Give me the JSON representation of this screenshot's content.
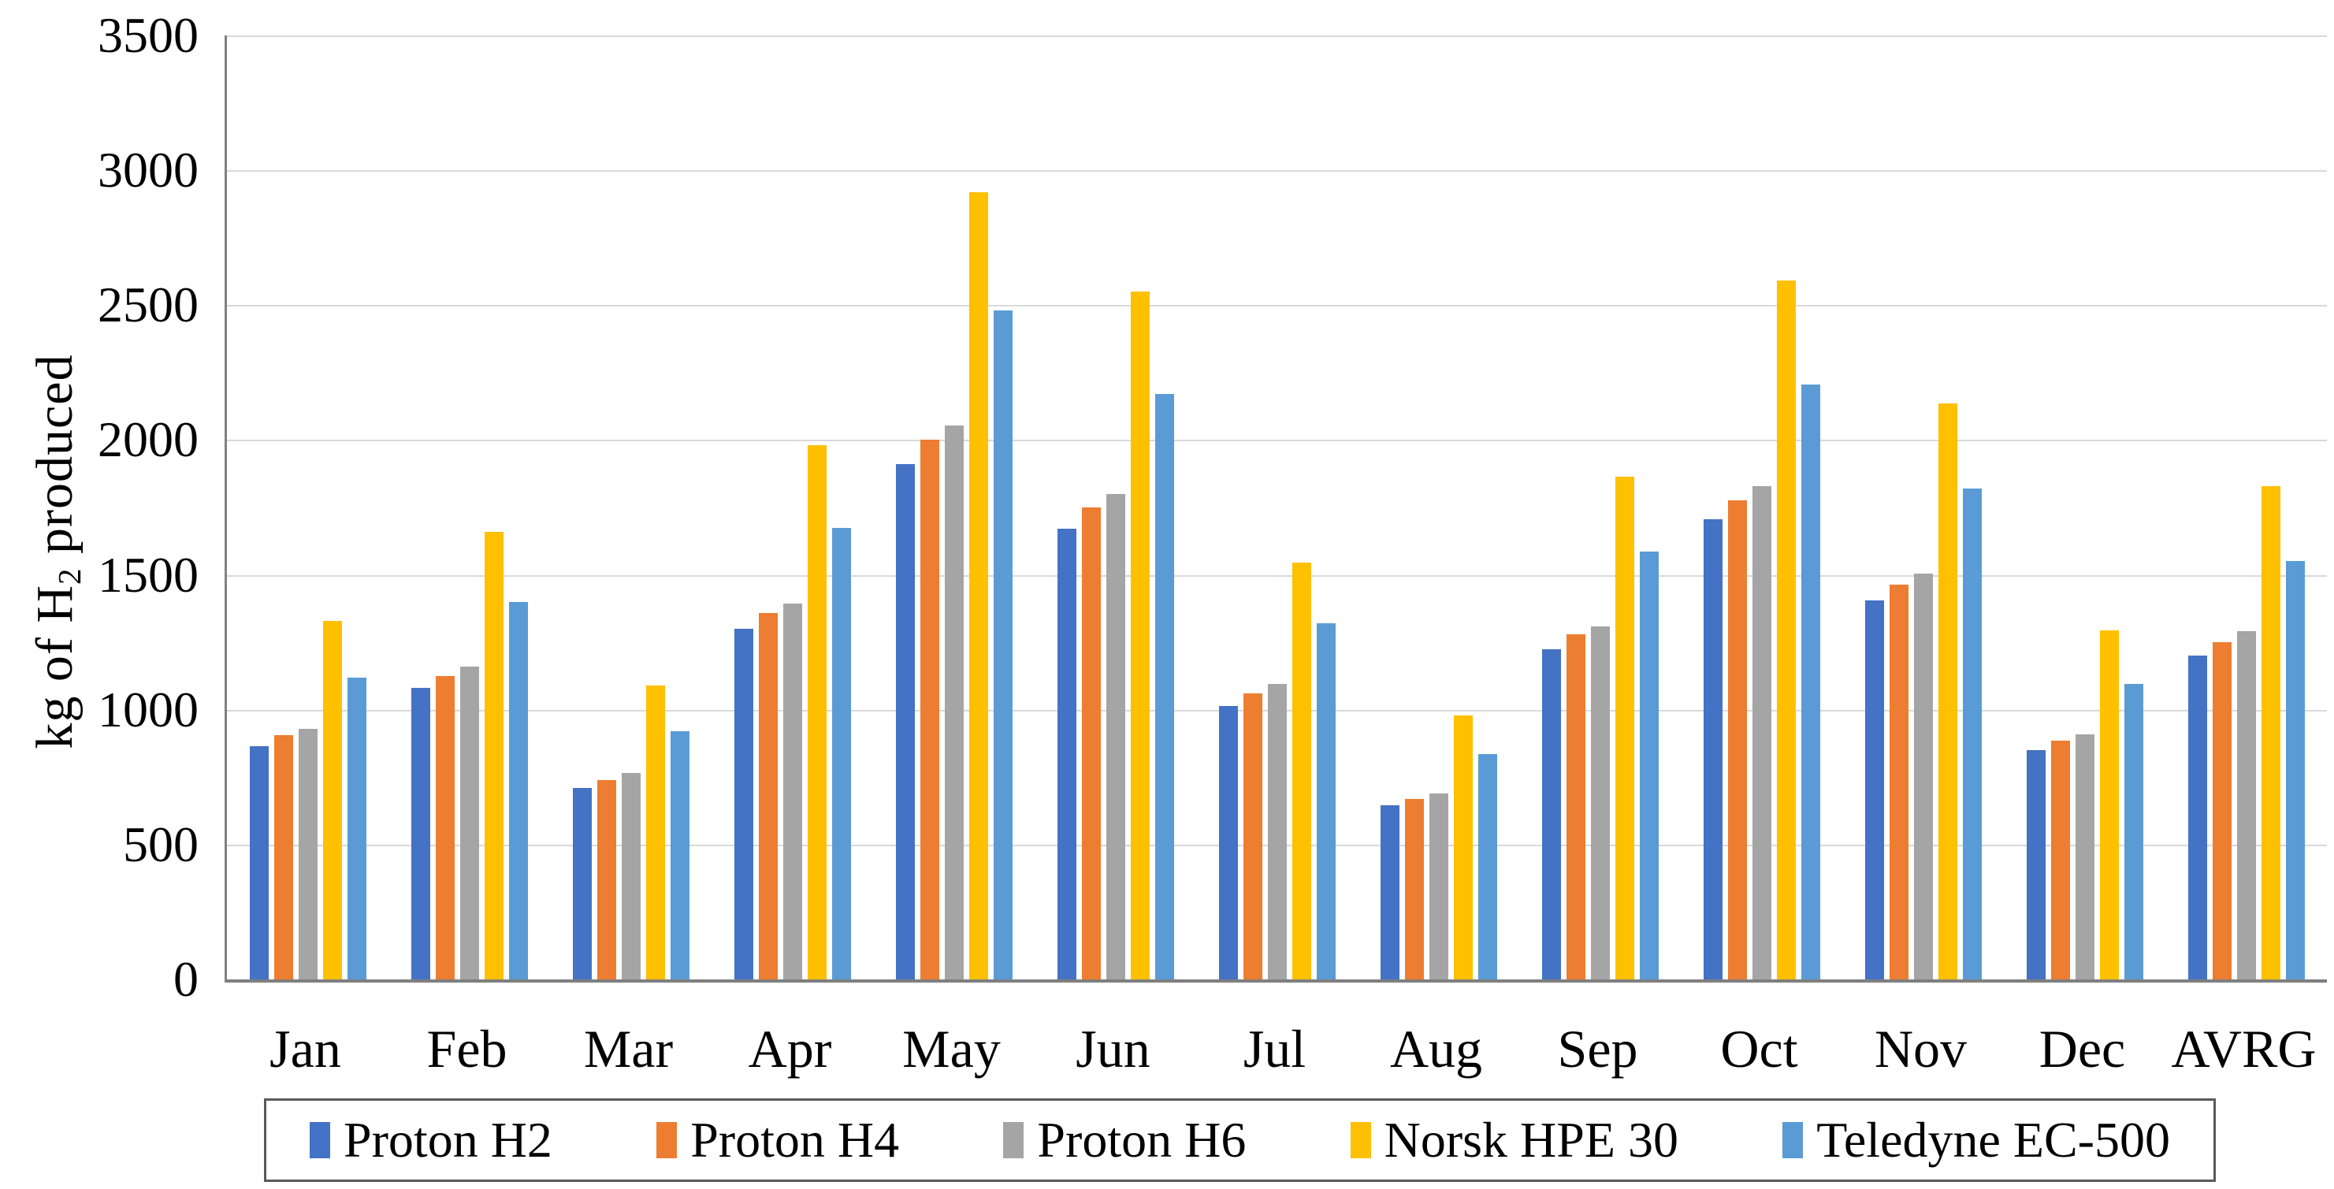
{
  "chart_data": {
    "type": "bar",
    "title": "",
    "ylabel_pre": "kg of H",
    "ylabel_sub": "2",
    "ylabel_post": " produced",
    "xlabel": "",
    "ylim": [
      0,
      3500
    ],
    "ytick_step": 500,
    "ytick_labels": [
      "3500",
      "3000",
      "2500",
      "2000",
      "1500",
      "1000",
      "500",
      "0"
    ],
    "grid": true,
    "legend_position": "bottom",
    "categories": [
      "Jan",
      "Feb",
      "Mar",
      "Apr",
      "May",
      "Jun",
      "Jul",
      "Aug",
      "Sep",
      "Oct",
      "Nov",
      "Dec",
      "AVRG"
    ],
    "series": [
      {
        "name": "Proton H2",
        "color": "#4472C4",
        "values": [
          865,
          1080,
          710,
          1300,
          1910,
          1670,
          1015,
          645,
          1225,
          1705,
          1405,
          850,
          1200
        ]
      },
      {
        "name": "Proton H4",
        "color": "#ED7D31",
        "values": [
          905,
          1125,
          740,
          1360,
          2000,
          1750,
          1060,
          670,
          1280,
          1775,
          1465,
          885,
          1250
        ]
      },
      {
        "name": "Proton H6",
        "color": "#A5A5A5",
        "values": [
          930,
          1160,
          765,
          1395,
          2055,
          1800,
          1095,
          690,
          1310,
          1830,
          1505,
          910,
          1290
        ]
      },
      {
        "name": "Norsk HPE 30",
        "color": "#FFC000",
        "values": [
          1330,
          1660,
          1090,
          1980,
          2920,
          2550,
          1545,
          980,
          1865,
          2590,
          2135,
          1295,
          1830
        ]
      },
      {
        "name": "Teledyne EC-500",
        "color": "#5B9BD5",
        "values": [
          1120,
          1400,
          920,
          1675,
          2480,
          2170,
          1320,
          835,
          1585,
          2205,
          1820,
          1095,
          1550
        ]
      }
    ],
    "colors": {
      "gridline": "#D9D9D9",
      "axis_line": "#7F7F7F",
      "legend_border": "#595959",
      "text": "#000000"
    }
  }
}
